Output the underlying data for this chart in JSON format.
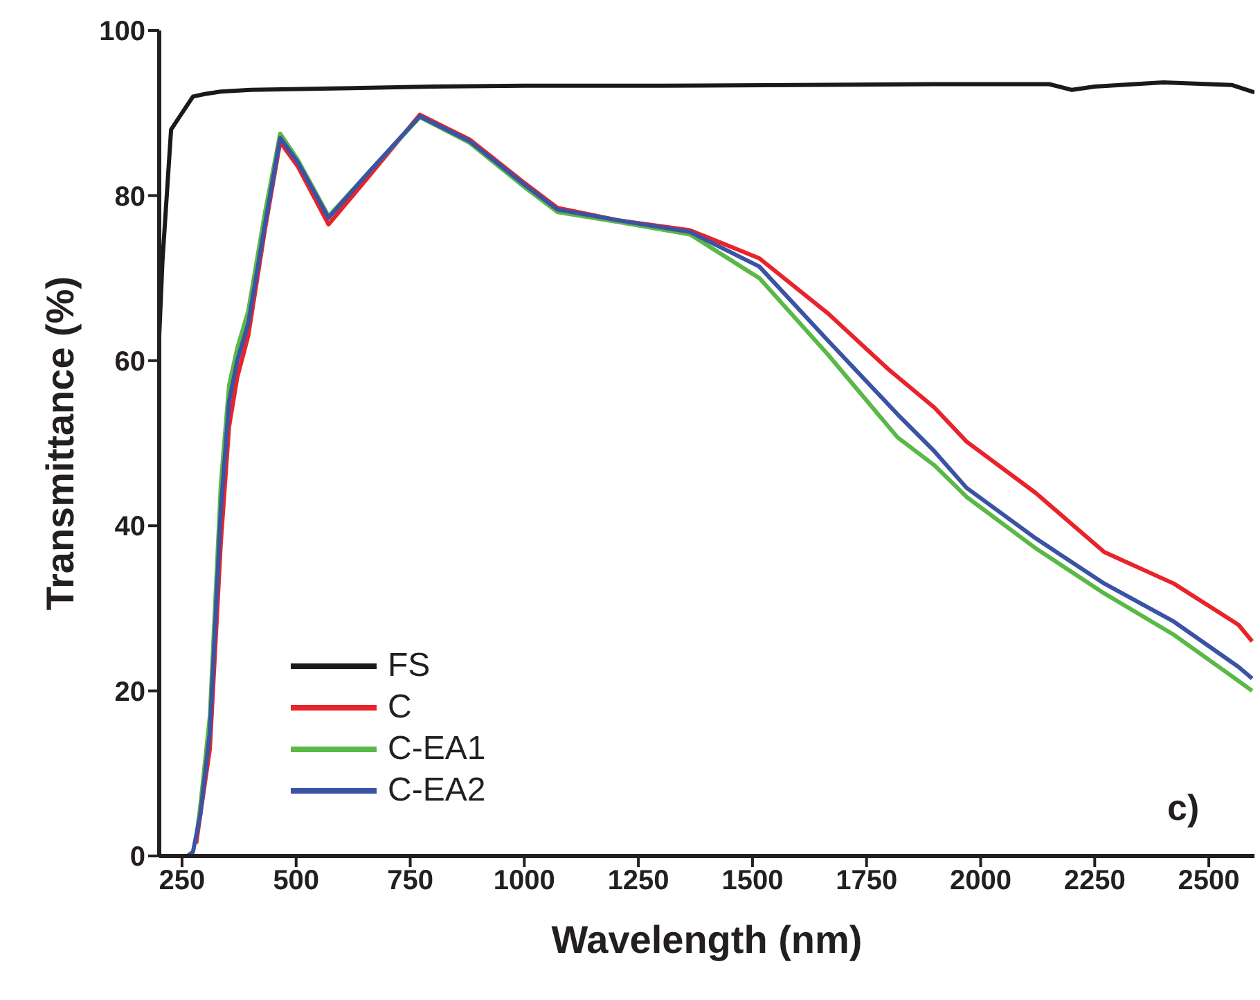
{
  "chart_data": {
    "type": "line",
    "xlabel": "Wavelength (nm)",
    "ylabel": "Transmittance (%)",
    "xlim": [
      200,
      2600
    ],
    "xticks": [
      250,
      500,
      750,
      1000,
      1250,
      1500,
      1750,
      2000,
      2250,
      2500
    ],
    "ylim": [
      0,
      100
    ],
    "yticks": [
      0,
      20,
      40,
      60,
      80,
      100
    ],
    "legend": "bottom left",
    "grid": false,
    "annotations": [
      "c)"
    ],
    "series": [
      {
        "name": "FS",
        "color": "#1a1a1a",
        "x": [
          200,
          207,
          226,
          250,
          274,
          300,
          335,
          400,
          600,
          800,
          1000,
          1300,
          1600,
          1900,
          2150,
          2200,
          2250,
          2400,
          2550,
          2600
        ],
        "values": [
          63,
          72,
          88,
          90,
          92,
          92.3,
          92.6,
          92.8,
          93,
          93.2,
          93.3,
          93.3,
          93.4,
          93.5,
          93.5,
          92.8,
          93.2,
          93.7,
          93.4,
          92.5
        ]
      },
      {
        "name": "C",
        "color": "#e8232a",
        "x": [
          281,
          290,
          311,
          335,
          353,
          371,
          395,
          432,
          465,
          504,
          571,
          662,
          771,
          880,
          1001,
          1073,
          1206,
          1363,
          1515,
          1666,
          1797,
          1899,
          1969,
          2120,
          2271,
          2423,
          2565,
          2595
        ],
        "values": [
          1.5,
          5,
          13,
          38,
          52,
          58,
          63,
          76,
          86.5,
          83.5,
          76.5,
          82.5,
          89.8,
          86.8,
          81.5,
          78.5,
          77,
          75.8,
          72.4,
          65.7,
          59,
          54.3,
          50.2,
          44,
          36.8,
          33,
          28,
          26
        ]
      },
      {
        "name": "C-EA1",
        "color": "#5ab946",
        "x": [
          283,
          290,
          311,
          335,
          353,
          371,
          395,
          432,
          465,
          504,
          571,
          662,
          771,
          880,
          1001,
          1073,
          1206,
          1363,
          1515,
          1666,
          1818,
          1899,
          1969,
          2120,
          2271,
          2423,
          2565,
          2595
        ],
        "values": [
          3,
          6,
          17,
          45,
          57,
          61.5,
          66,
          78,
          87.5,
          84.3,
          77.5,
          83,
          89.5,
          86.4,
          81,
          78,
          76.8,
          75.3,
          70,
          60.7,
          50.7,
          47.3,
          43.5,
          37.3,
          31.8,
          26.8,
          21.2,
          20
        ]
      },
      {
        "name": "C-EA2",
        "color": "#3a53a4",
        "x": [
          200,
          262,
          274,
          290,
          311,
          335,
          353,
          371,
          395,
          432,
          465,
          504,
          571,
          662,
          771,
          880,
          1001,
          1073,
          1206,
          1363,
          1515,
          1666,
          1818,
          1899,
          1969,
          2120,
          2271,
          2423,
          2565,
          2595
        ],
        "values": [
          0,
          0,
          0.5,
          5,
          15,
          42,
          55,
          60,
          64.5,
          76.6,
          87,
          84,
          77.3,
          83,
          89.6,
          86.6,
          81.3,
          78.3,
          77,
          75.6,
          71.4,
          62.4,
          53.5,
          49,
          44.6,
          38.5,
          33,
          28.4,
          22.9,
          21.5
        ]
      }
    ]
  }
}
